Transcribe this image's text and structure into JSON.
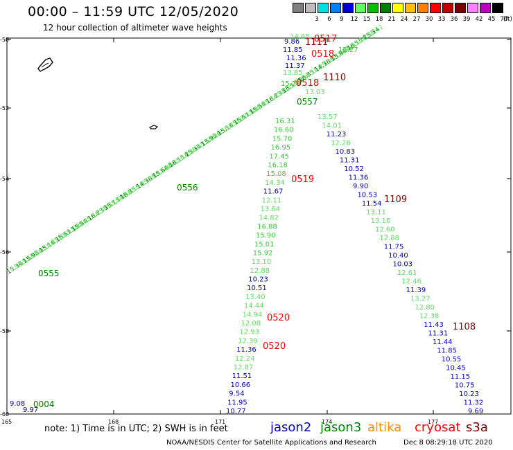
{
  "header": {
    "title": "00:00 – 11:59 UTC 12/05/2020",
    "subtitle": "12 hour collection of altimeter wave heights"
  },
  "scale": {
    "unit": "(ft)",
    "levels": [
      {
        "label": "",
        "color": "#808080"
      },
      {
        "label": "3",
        "color": "#bcbcbc"
      },
      {
        "label": "6",
        "color": "#00e0e0"
      },
      {
        "label": "9",
        "color": "#0080ff"
      },
      {
        "label": "12",
        "color": "#0000d0"
      },
      {
        "label": "15",
        "color": "#60ff60"
      },
      {
        "label": "18",
        "color": "#00c000"
      },
      {
        "label": "21",
        "color": "#008000"
      },
      {
        "label": "24",
        "color": "#ffff00"
      },
      {
        "label": "27",
        "color": "#ffc000"
      },
      {
        "label": "30",
        "color": "#ff8000"
      },
      {
        "label": "33",
        "color": "#ff0000"
      },
      {
        "label": "36",
        "color": "#c00000"
      },
      {
        "label": "39",
        "color": "#800000"
      },
      {
        "label": "42",
        "color": "#ff80ff"
      },
      {
        "label": "45",
        "color": "#c000c0"
      },
      {
        "label": "70",
        "color": "#000000"
      }
    ]
  },
  "axes": {
    "lat_labels": [
      "-50",
      "-52",
      "-54",
      "-56",
      "-58",
      "-60"
    ],
    "lon_labels": [
      "165",
      "168",
      "171",
      "174",
      "177"
    ]
  },
  "colors": {
    "jason2": "#0000c0",
    "jason3": "#008000",
    "altika": "#ff8c00",
    "cryosat": "#ff0000",
    "s3a": "#800000",
    "green_low": "#5fdc5f",
    "green_high": "#3cc83c",
    "blue": "#0000c0"
  },
  "tracks": {
    "track1": [
      "11.67",
      "12.11",
      "13.64",
      "14.82",
      "16.88",
      "15.90",
      "15.01",
      "15.92",
      "13.10",
      "12.88",
      "10.23",
      "10.51",
      "13.40",
      "14.44",
      "14.94",
      "12.08",
      "12.93",
      "12.39",
      "11.36",
      "12.24",
      "12.87",
      "11.51",
      "10.66",
      "9.54",
      "11.95",
      "10.77"
    ],
    "track1_upper": [
      "16.31",
      "16.60",
      "15.70",
      "16.95",
      "17.45",
      "16.18",
      "15.08",
      "14.34"
    ],
    "track2": [
      "11.23",
      "12.28",
      "10.83",
      "11.31",
      "10.52",
      "11.36",
      "9.90",
      "10.53",
      "11.54",
      "13.11",
      "13.16",
      "12.60",
      "12.88",
      "11.75",
      "10.40",
      "10.03",
      "12.61",
      "12.46",
      "11.39",
      "13.27",
      "12.80",
      "12.38",
      "11.43",
      "11.31",
      "11.44",
      "11.85",
      "10.55",
      "10.45",
      "11.15",
      "10.75",
      "10.23",
      "11.32",
      "9.69"
    ],
    "track2_upper": [
      "13.57",
      "14.01"
    ],
    "top_cluster": [
      "9.86",
      "11.85",
      "11.36",
      "11.37",
      "13.85",
      "14.65",
      "15.27",
      "15.79",
      "13.03"
    ],
    "diagonal": [
      "15.34",
      "15.51",
      "15.13",
      "15.64",
      "15.92",
      "15.54",
      "16.35",
      "16.15",
      "15.16",
      "16.23",
      "14.36"
    ]
  },
  "labels": {
    "time_0517": "0517",
    "time_0518a": "0518",
    "time_0518b": "0518",
    "time_0519": "0519",
    "time_0520a": "0520",
    "time_0520b": "0520",
    "time_1111": "1111",
    "time_1110": "1110",
    "time_1109": "1109",
    "time_1108": "1108",
    "time_0557": "0557",
    "time_0556": "0556",
    "time_0555": "0555",
    "time_0004": "0004",
    "corner_908": "9.08",
    "corner_997": "9.97"
  },
  "satellites": [
    {
      "name": "jason2",
      "color": "#0000c0"
    },
    {
      "name": "jason3",
      "color": "#008000"
    },
    {
      "name": "altika",
      "color": "#ff8c00"
    },
    {
      "name": "cryosat",
      "color": "#ff0000"
    },
    {
      "name": "s3a",
      "color": "#800000"
    }
  ],
  "footer": {
    "note": "note:  1) Time is in UTC;  2) SWH is in feet",
    "credit": "NOAA/NESDIS Center for Satellite Applications and Research",
    "generated": "Dec  8 08:29:18 UTC 2020"
  }
}
